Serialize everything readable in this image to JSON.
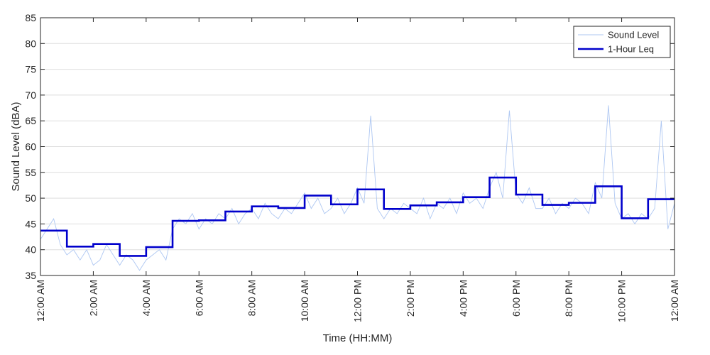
{
  "chart_data": {
    "type": "line",
    "title": "",
    "xlabel": "Time (HH:MM)",
    "ylabel": "Sound Level (dBA)",
    "xlim": [
      0,
      24
    ],
    "ylim": [
      35,
      85
    ],
    "y_ticks": [
      35,
      40,
      45,
      50,
      55,
      60,
      65,
      70,
      75,
      80,
      85
    ],
    "x_ticks": [
      0,
      2,
      4,
      6,
      8,
      10,
      12,
      14,
      16,
      18,
      20,
      22,
      24
    ],
    "x_tick_labels": [
      "12:00 AM",
      "2:00 AM",
      "4:00 AM",
      "6:00 AM",
      "8:00 AM",
      "10:00 AM",
      "12:00 PM",
      "2:00 PM",
      "4:00 PM",
      "6:00 PM",
      "8:00 PM",
      "10:00 PM",
      "12:00 AM"
    ],
    "grid": true,
    "legend": {
      "placement": "top-right"
    },
    "series": [
      {
        "name": "Sound Level",
        "color": "#aec7f2",
        "x": [
          0.0,
          0.25,
          0.5,
          0.75,
          1.0,
          1.25,
          1.5,
          1.75,
          2.0,
          2.25,
          2.5,
          2.75,
          3.0,
          3.25,
          3.5,
          3.75,
          4.0,
          4.25,
          4.5,
          4.75,
          5.0,
          5.25,
          5.5,
          5.75,
          6.0,
          6.25,
          6.5,
          6.75,
          7.0,
          7.25,
          7.5,
          7.75,
          8.0,
          8.25,
          8.5,
          8.75,
          9.0,
          9.25,
          9.5,
          9.75,
          10.0,
          10.25,
          10.5,
          10.75,
          11.0,
          11.25,
          11.5,
          11.75,
          12.0,
          12.25,
          12.5,
          12.75,
          13.0,
          13.25,
          13.5,
          13.75,
          14.0,
          14.25,
          14.5,
          14.75,
          15.0,
          15.25,
          15.5,
          15.75,
          16.0,
          16.25,
          16.5,
          16.75,
          17.0,
          17.25,
          17.5,
          17.75,
          18.0,
          18.25,
          18.5,
          18.75,
          19.0,
          19.25,
          19.5,
          19.75,
          20.0,
          20.25,
          20.5,
          20.75,
          21.0,
          21.25,
          21.5,
          21.75,
          22.0,
          22.25,
          22.5,
          22.75,
          23.0,
          23.25,
          23.5,
          23.75,
          24.0
        ],
        "values": [
          42,
          44,
          46,
          41,
          39,
          40,
          38,
          40,
          37,
          38,
          41,
          39,
          37,
          39,
          38,
          36,
          38,
          39,
          40,
          38,
          44,
          46,
          45,
          47,
          44,
          46,
          45,
          47,
          46,
          48,
          45,
          47,
          48,
          46,
          49,
          47,
          46,
          48,
          47,
          49,
          51,
          48,
          50,
          47,
          48,
          50,
          47,
          49,
          52,
          49,
          66,
          48,
          46,
          48,
          47,
          49,
          48,
          47,
          50,
          46,
          49,
          48,
          50,
          47,
          51,
          49,
          50,
          48,
          52,
          55,
          50,
          67,
          51,
          49,
          52,
          48,
          48,
          50,
          47,
          49,
          48,
          50,
          49,
          47,
          53,
          50,
          68,
          49,
          46,
          47,
          45,
          47,
          46,
          48,
          65,
          44,
          49
        ]
      },
      {
        "name": "1-Hour Leq",
        "color": "#0000cc",
        "type": "step",
        "x": [
          0,
          1,
          2,
          3,
          4,
          5,
          6,
          7,
          8,
          9,
          10,
          11,
          12,
          13,
          14,
          15,
          16,
          17,
          18,
          19,
          20,
          21,
          22,
          23,
          24
        ],
        "values": [
          43.7,
          40.6,
          41.1,
          38.8,
          40.5,
          45.6,
          45.7,
          47.4,
          48.4,
          48.1,
          50.5,
          48.8,
          51.7,
          47.9,
          48.6,
          49.2,
          50.2,
          54.0,
          50.7,
          48.7,
          49.1,
          52.3,
          46.1,
          49.8,
          49.8
        ]
      }
    ]
  }
}
